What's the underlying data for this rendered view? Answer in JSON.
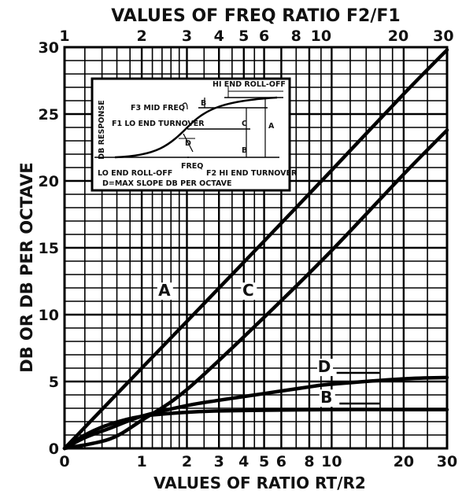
{
  "chart_data": {
    "type": "line",
    "title": "VALUES OF FREQ RATIO F2/F1",
    "xlabel": "VALUES OF RATIO RT/R2",
    "ylabel": "DB OR DB PER OCTAVE",
    "x_scale": "log(1+x)",
    "ylim": [
      0,
      30
    ],
    "grid": true,
    "y_ticks": [
      "0",
      "5",
      "10",
      "15",
      "20",
      "25",
      "30"
    ],
    "bottom_ticks": [
      {
        "value": 0,
        "label": "0"
      },
      {
        "value": 1,
        "label": "1"
      },
      {
        "value": 2,
        "label": "2"
      },
      {
        "value": 3,
        "label": "3"
      },
      {
        "value": 4,
        "label": "4"
      },
      {
        "value": 5,
        "label": "5"
      },
      {
        "value": 6,
        "label": "6"
      },
      {
        "value": 8,
        "label": "8"
      },
      {
        "value": 10,
        "label": "10"
      },
      {
        "value": 20,
        "label": "20"
      },
      {
        "value": 30,
        "label": "30"
      }
    ],
    "top_ticks": [
      {
        "ratio": 1,
        "label": "1"
      },
      {
        "ratio": 2,
        "label": "2"
      },
      {
        "ratio": 3,
        "label": "3"
      },
      {
        "ratio": 4,
        "label": "4"
      },
      {
        "ratio": 5,
        "label": "5"
      },
      {
        "ratio": 6,
        "label": "6"
      },
      {
        "ratio": 8,
        "label": "8"
      },
      {
        "ratio": 10,
        "label": "10"
      },
      {
        "ratio": 20,
        "label": "20"
      },
      {
        "ratio": 30,
        "label": "30"
      }
    ],
    "series": [
      {
        "name": "A",
        "x": [
          0,
          1,
          2,
          5,
          10,
          20,
          30
        ],
        "y": [
          0,
          6.0,
          9.5,
          15.5,
          20.8,
          26.5,
          29.8
        ]
      },
      {
        "name": "C",
        "x": [
          0,
          0.5,
          1,
          2,
          5,
          10,
          20,
          30
        ],
        "y": [
          0,
          0.7,
          2.1,
          4.4,
          9.8,
          14.8,
          20.5,
          23.8
        ]
      },
      {
        "name": "D",
        "x": [
          0,
          0.2,
          0.5,
          1,
          2,
          3,
          5,
          8,
          10,
          20,
          30
        ],
        "y": [
          0,
          0.8,
          1.5,
          2.4,
          3.2,
          3.6,
          4.1,
          4.6,
          4.8,
          5.2,
          5.3
        ]
      },
      {
        "name": "B",
        "x": [
          0,
          0.2,
          0.5,
          1,
          2,
          3,
          5,
          10,
          20,
          30
        ],
        "y": [
          0,
          1.0,
          1.8,
          2.4,
          2.7,
          2.8,
          2.85,
          2.9,
          2.9,
          2.9
        ]
      }
    ],
    "inset": {
      "ylabel": "DB RESPONSE",
      "labels": {
        "hi_end_rolloff": "HI END ROLL-OFF",
        "f3_mid_freq": "F3 MID FREQ",
        "f1_lo_turnover": "F1 LO END TURNOVER",
        "freq": "FREQ",
        "f2_hi_turnover": "F2 HI END TURNOVER",
        "lo_end_rolloff": "LO END ROLL-OFF",
        "max_slope_note": "D=MAX SLOPE DB PER OCTAVE",
        "marker_a": "A",
        "marker_b_top": "B",
        "marker_b_bottom": "B",
        "marker_c": "C",
        "marker_d": "D"
      }
    }
  }
}
